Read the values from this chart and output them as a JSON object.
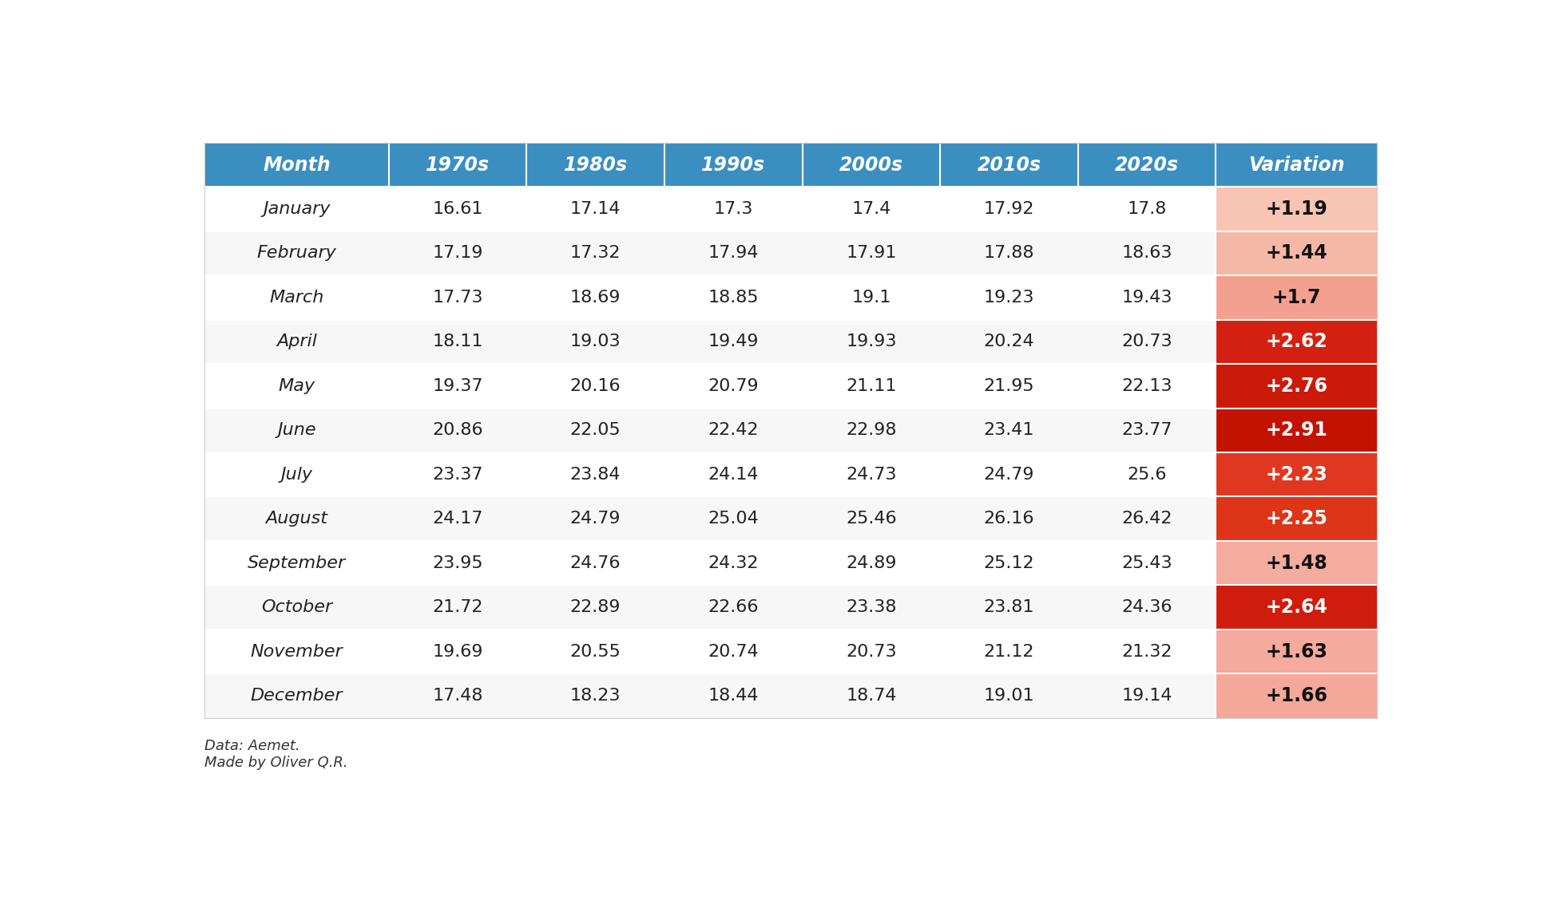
{
  "headers": [
    "Month",
    "1970s",
    "1980s",
    "1990s",
    "2000s",
    "2010s",
    "2020s",
    "Variation"
  ],
  "months": [
    "January",
    "February",
    "March",
    "April",
    "May",
    "June",
    "July",
    "August",
    "September",
    "October",
    "November",
    "December"
  ],
  "data": [
    [
      16.61,
      17.14,
      17.3,
      17.4,
      17.92,
      17.8,
      "+1.19"
    ],
    [
      17.19,
      17.32,
      17.94,
      17.91,
      17.88,
      18.63,
      "+1.44"
    ],
    [
      17.73,
      18.69,
      18.85,
      19.1,
      19.23,
      19.43,
      "+1.7"
    ],
    [
      18.11,
      19.03,
      19.49,
      19.93,
      20.24,
      20.73,
      "+2.62"
    ],
    [
      19.37,
      20.16,
      20.79,
      21.11,
      21.95,
      22.13,
      "+2.76"
    ],
    [
      20.86,
      22.05,
      22.42,
      22.98,
      23.41,
      23.77,
      "+2.91"
    ],
    [
      23.37,
      23.84,
      24.14,
      24.73,
      24.79,
      25.6,
      "+2.23"
    ],
    [
      24.17,
      24.79,
      25.04,
      25.46,
      26.16,
      26.42,
      "+2.25"
    ],
    [
      23.95,
      24.76,
      24.32,
      24.89,
      25.12,
      25.43,
      "+1.48"
    ],
    [
      21.72,
      22.89,
      22.66,
      23.38,
      23.81,
      24.36,
      "+2.64"
    ],
    [
      19.69,
      20.55,
      20.74,
      20.73,
      21.12,
      21.32,
      "+1.63"
    ],
    [
      17.48,
      18.23,
      18.44,
      18.74,
      19.01,
      19.14,
      "+1.66"
    ]
  ],
  "header_bg_color": "#3a8fc0",
  "header_text_color": "#ffffff",
  "row_bg_even": "#ffffff",
  "row_bg_odd": "#f7f7f7",
  "variation_colors": {
    "+1.19": "#f8c4b4",
    "+1.44": "#f6b8a6",
    "+1.7": "#f4a090",
    "+2.62": "#d42010",
    "+2.76": "#cc1a0a",
    "+2.91": "#c41200",
    "+2.23": "#e03820",
    "+2.25": "#de3418",
    "+1.48": "#f4ac9e",
    "+2.64": "#d01c0c",
    "+1.63": "#f4aa9c",
    "+1.66": "#f4a89a"
  },
  "variation_text_colors": {
    "+1.19": "#111111",
    "+1.44": "#111111",
    "+1.7": "#111111",
    "+2.62": "#ffffff",
    "+2.76": "#ffffff",
    "+2.91": "#ffffff",
    "+2.23": "#ffffff",
    "+2.25": "#ffffff",
    "+1.48": "#111111",
    "+2.64": "#ffffff",
    "+1.63": "#111111",
    "+1.66": "#111111"
  },
  "footer_text": "Data: Aemet.\nMade by Oliver Q.R.",
  "col_widths": [
    1.6,
    1.2,
    1.2,
    1.2,
    1.2,
    1.2,
    1.2,
    1.4
  ]
}
